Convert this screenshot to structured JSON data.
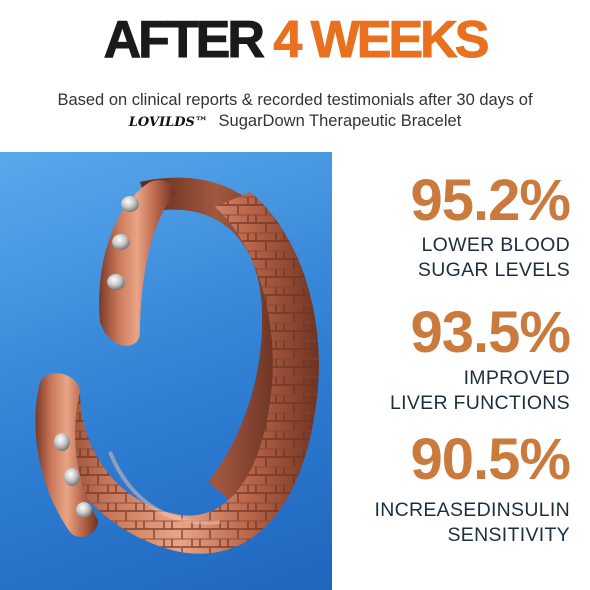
{
  "headline": {
    "part1": "AFTER",
    "part2": "4 WEEKS"
  },
  "subtitle": {
    "line1": "Based on clinical reports & recorded testimonials after 30 days of",
    "brand": "LOVILDS™",
    "product": "SugarDown Therapeutic Bracelet"
  },
  "stats": [
    {
      "value": "95.2%",
      "label_line1": "LOWER BLOOD",
      "label_line2": "SUGAR LEVELS"
    },
    {
      "value": "93.5%",
      "label_line1": "IMPROVED",
      "label_line2": "LIVER FUNCTIONS"
    },
    {
      "value": "90.5%",
      "label_line1": "INCREASEDINSULIN",
      "label_line2": "SENSITIVITY"
    }
  ],
  "colors": {
    "accent": "#e8701e",
    "stat_number": "#c97a3c",
    "stat_label": "#1c2f3e",
    "photo_background": "#2f7fd4",
    "copper": "#b5654a"
  },
  "image": {
    "subject": "copper-magnetic-bracelet"
  }
}
